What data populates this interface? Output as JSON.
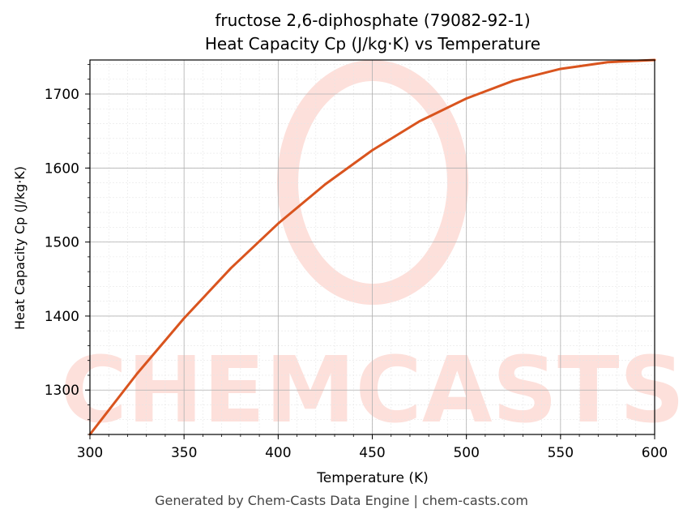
{
  "chart_data": {
    "type": "line",
    "title": "fructose 2,6-diphosphate (79082-92-1)",
    "subtitle": "Heat Capacity Cp (J/kg·K) vs Temperature",
    "xlabel": "Temperature (K)",
    "ylabel": "Heat Capacity Cp (J/kg·K)",
    "xlim": [
      300,
      600
    ],
    "ylim": [
      1240,
      1746
    ],
    "xticks": [
      300,
      350,
      400,
      450,
      500,
      550,
      600
    ],
    "yticks": [
      1300,
      1400,
      1500,
      1600,
      1700
    ],
    "grid": true,
    "series": [
      {
        "x": [
          300,
          325,
          350,
          375,
          400,
          425,
          450,
          475,
          500,
          525,
          550,
          575,
          600
        ],
        "y": [
          1240,
          1322,
          1397,
          1465,
          1525,
          1578,
          1624,
          1663,
          1694,
          1718,
          1734,
          1743,
          1746
        ],
        "color": "#d9541e"
      }
    ]
  },
  "watermark": {
    "text": "CHEMCASTS",
    "color": "#fde0db"
  },
  "footer": {
    "text": "Generated by Chem-Casts Data Engine | chem-casts.com"
  }
}
